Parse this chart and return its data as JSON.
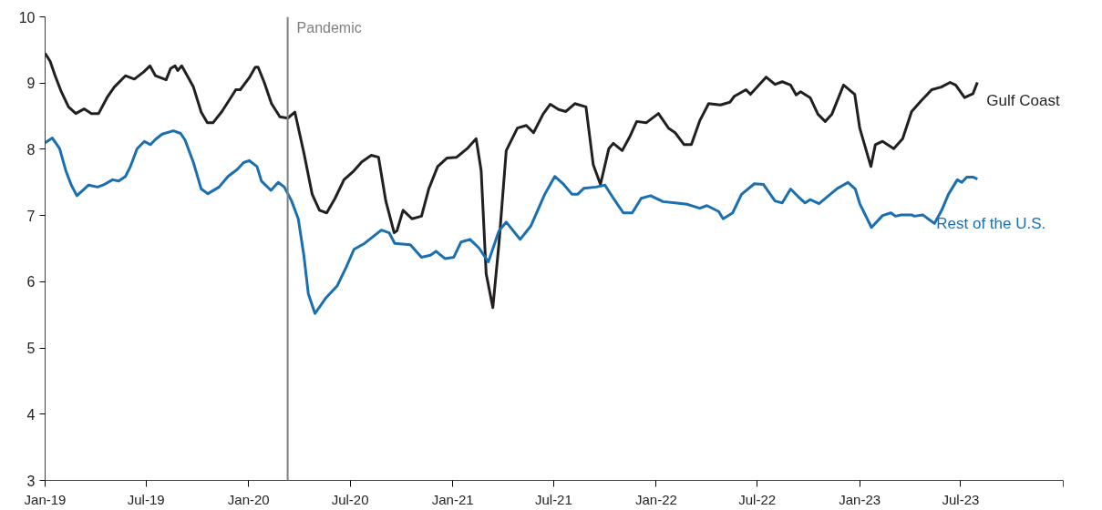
{
  "chart_data": {
    "type": "line",
    "xlim": [
      "2019-01-01",
      "2024-01-01"
    ],
    "ylim": [
      3,
      10
    ],
    "yticks": [
      3,
      4,
      5,
      6,
      7,
      8,
      9,
      10
    ],
    "xticks": [
      {
        "value": "2019-01-01",
        "label": "Jan-19"
      },
      {
        "value": "2019-07-01",
        "label": "Jul-19"
      },
      {
        "value": "2020-01-01",
        "label": "Jan-20"
      },
      {
        "value": "2020-07-01",
        "label": "Jul-20"
      },
      {
        "value": "2021-01-01",
        "label": "Jan-21"
      },
      {
        "value": "2021-07-01",
        "label": "Jul-21"
      },
      {
        "value": "2022-01-01",
        "label": "Jan-22"
      },
      {
        "value": "2022-07-01",
        "label": "Jul-22"
      },
      {
        "value": "2023-01-01",
        "label": "Jan-23"
      },
      {
        "value": "2023-07-01",
        "label": "Jul-23"
      },
      {
        "value": "2024-01-01",
        "label": null
      }
    ],
    "grid": false,
    "legend": false,
    "marker": "none",
    "line_style": "solid",
    "ref_lines": [
      {
        "axis": "x",
        "value": "2020-03-11",
        "label": "Pandemic",
        "color": "#808080"
      }
    ],
    "series": [
      {
        "name": "Gulf Coast",
        "color": "#231f20",
        "x": [
          "2019-01-01",
          "2019-01-10",
          "2019-01-19",
          "2019-01-30",
          "2019-02-12",
          "2019-02-25",
          "2019-03-12",
          "2019-03-25",
          "2019-04-07",
          "2019-04-22",
          "2019-05-05",
          "2019-05-25",
          "2019-06-10",
          "2019-06-27",
          "2019-07-08",
          "2019-07-18",
          "2019-08-06",
          "2019-08-14",
          "2019-08-22",
          "2019-08-27",
          "2019-09-03",
          "2019-09-13",
          "2019-09-24",
          "2019-10-08",
          "2019-10-19",
          "2019-10-29",
          "2019-11-14",
          "2019-11-30",
          "2019-12-09",
          "2019-12-17",
          "2020-01-02",
          "2020-01-13",
          "2020-01-18",
          "2020-01-29",
          "2020-02-11",
          "2020-02-26",
          "2020-03-11",
          "2020-03-24",
          "2020-04-09",
          "2020-04-24",
          "2020-05-07",
          "2020-05-20",
          "2020-06-04",
          "2020-06-20",
          "2020-07-06",
          "2020-07-22",
          "2020-08-08",
          "2020-08-21",
          "2020-09-03",
          "2020-09-18",
          "2020-09-23",
          "2020-10-04",
          "2020-10-20",
          "2020-11-06",
          "2020-11-19",
          "2020-12-05",
          "2020-12-22",
          "2021-01-08",
          "2021-01-27",
          "2021-02-12",
          "2021-02-21",
          "2021-03-02",
          "2021-03-14",
          "2021-03-25",
          "2021-04-07",
          "2021-04-27",
          "2021-05-13",
          "2021-05-26",
          "2021-06-12",
          "2021-06-25",
          "2021-07-10",
          "2021-07-23",
          "2021-08-08",
          "2021-08-28",
          "2021-09-10",
          "2021-09-23",
          "2021-10-08",
          "2021-10-16",
          "2021-11-01",
          "2021-11-14",
          "2021-11-27",
          "2021-12-14",
          "2022-01-05",
          "2022-01-23",
          "2022-02-04",
          "2022-02-20",
          "2022-03-05",
          "2022-03-20",
          "2022-04-05",
          "2022-04-26",
          "2022-05-13",
          "2022-05-21",
          "2022-06-11",
          "2022-06-19",
          "2022-07-01",
          "2022-07-17",
          "2022-08-02",
          "2022-08-15",
          "2022-08-30",
          "2022-09-09",
          "2022-09-17",
          "2022-10-04",
          "2022-10-18",
          "2022-10-31",
          "2022-11-12",
          "2022-12-03",
          "2022-12-23",
          "2023-01-01",
          "2023-01-21",
          "2023-01-29",
          "2023-02-11",
          "2023-03-03",
          "2023-03-19",
          "2023-04-04",
          "2023-04-21",
          "2023-05-10",
          "2023-05-27",
          "2023-06-12",
          "2023-06-22",
          "2023-07-08",
          "2023-07-23",
          "2023-07-31"
        ],
        "values": [
          9.45,
          9.33,
          9.11,
          8.87,
          8.64,
          8.54,
          8.61,
          8.54,
          8.54,
          8.78,
          8.94,
          9.11,
          9.06,
          9.17,
          9.26,
          9.11,
          9.05,
          9.22,
          9.26,
          9.19,
          9.26,
          9.11,
          8.94,
          8.56,
          8.4,
          8.4,
          8.57,
          8.78,
          8.9,
          8.9,
          9.08,
          9.24,
          9.24,
          9.01,
          8.69,
          8.49,
          8.47,
          8.56,
          7.95,
          7.32,
          7.08,
          7.04,
          7.26,
          7.54,
          7.66,
          7.81,
          7.91,
          7.88,
          7.22,
          6.74,
          6.77,
          7.08,
          6.95,
          6.99,
          7.4,
          7.74,
          7.87,
          7.88,
          8.01,
          8.16,
          7.68,
          6.12,
          5.61,
          6.58,
          7.98,
          8.32,
          8.36,
          8.25,
          8.53,
          8.68,
          8.6,
          8.57,
          8.69,
          8.64,
          7.77,
          7.47,
          8.01,
          8.09,
          7.98,
          8.18,
          8.42,
          8.4,
          8.54,
          8.32,
          8.25,
          8.07,
          8.07,
          8.43,
          8.69,
          8.67,
          8.71,
          8.8,
          8.9,
          8.83,
          8.94,
          9.09,
          8.98,
          9.02,
          8.97,
          8.82,
          8.87,
          8.78,
          8.53,
          8.42,
          8.53,
          8.97,
          8.83,
          8.32,
          7.74,
          8.07,
          8.12,
          8.01,
          8.16,
          8.57,
          8.73,
          8.9,
          8.94,
          9.01,
          8.97,
          8.78,
          8.84,
          9.01
        ]
      },
      {
        "name": "Rest of the U.S.",
        "color": "#1a6fb0",
        "x": [
          "2019-01-01",
          "2019-01-14",
          "2019-01-27",
          "2019-02-07",
          "2019-02-17",
          "2019-02-27",
          "2019-03-12",
          "2019-03-20",
          "2019-04-05",
          "2019-04-15",
          "2019-05-02",
          "2019-05-13",
          "2019-05-25",
          "2019-06-03",
          "2019-06-15",
          "2019-06-28",
          "2019-07-09",
          "2019-07-18",
          "2019-07-30",
          "2019-08-19",
          "2019-09-01",
          "2019-09-09",
          "2019-09-24",
          "2019-10-08",
          "2019-10-20",
          "2019-11-09",
          "2019-11-25",
          "2019-12-12",
          "2019-12-23",
          "2020-01-02",
          "2020-01-16",
          "2020-01-24",
          "2020-02-10",
          "2020-02-23",
          "2020-03-05",
          "2020-03-18",
          "2020-03-30",
          "2020-04-09",
          "2020-04-17",
          "2020-04-29",
          "2020-05-18",
          "2020-06-08",
          "2020-06-24",
          "2020-07-08",
          "2020-07-27",
          "2020-08-26",
          "2020-09-09",
          "2020-09-19",
          "2020-10-17",
          "2020-11-06",
          "2020-11-22",
          "2020-12-02",
          "2020-12-18",
          "2021-01-03",
          "2021-01-16",
          "2021-02-01",
          "2021-02-17",
          "2021-03-06",
          "2021-03-25",
          "2021-04-07",
          "2021-05-02",
          "2021-05-21",
          "2021-06-15",
          "2021-07-03",
          "2021-07-19",
          "2021-08-03",
          "2021-08-13",
          "2021-08-24",
          "2021-09-15",
          "2021-10-01",
          "2021-10-17",
          "2021-11-03",
          "2021-11-19",
          "2021-12-05",
          "2021-12-22",
          "2022-01-13",
          "2022-02-04",
          "2022-02-25",
          "2022-03-20",
          "2022-04-02",
          "2022-04-23",
          "2022-05-01",
          "2022-05-18",
          "2022-06-03",
          "2022-06-26",
          "2022-07-12",
          "2022-08-02",
          "2022-08-15",
          "2022-08-30",
          "2022-09-12",
          "2022-09-25",
          "2022-10-04",
          "2022-10-20",
          "2022-11-09",
          "2022-11-22",
          "2022-12-11",
          "2022-12-24",
          "2023-01-01",
          "2023-01-22",
          "2023-02-11",
          "2023-02-26",
          "2023-03-06",
          "2023-03-16",
          "2023-04-04",
          "2023-04-09",
          "2023-04-24",
          "2023-05-15",
          "2023-05-28",
          "2023-06-09",
          "2023-06-25",
          "2023-07-03",
          "2023-07-12",
          "2023-07-23",
          "2023-07-31"
        ],
        "values": [
          8.1,
          8.17,
          8.01,
          7.68,
          7.46,
          7.3,
          7.4,
          7.46,
          7.43,
          7.46,
          7.54,
          7.52,
          7.59,
          7.74,
          8.01,
          8.12,
          8.07,
          8.15,
          8.23,
          8.28,
          8.24,
          8.14,
          7.8,
          7.4,
          7.33,
          7.43,
          7.59,
          7.7,
          7.8,
          7.83,
          7.74,
          7.52,
          7.38,
          7.5,
          7.43,
          7.22,
          6.95,
          6.4,
          5.82,
          5.52,
          5.75,
          5.94,
          6.22,
          6.49,
          6.58,
          6.78,
          6.74,
          6.58,
          6.56,
          6.37,
          6.4,
          6.46,
          6.35,
          6.37,
          6.6,
          6.64,
          6.51,
          6.3,
          6.77,
          6.9,
          6.64,
          6.84,
          7.32,
          7.59,
          7.47,
          7.32,
          7.32,
          7.41,
          7.43,
          7.46,
          7.25,
          7.04,
          7.04,
          7.26,
          7.3,
          7.21,
          7.19,
          7.17,
          7.11,
          7.15,
          7.06,
          6.95,
          7.04,
          7.32,
          7.48,
          7.47,
          7.22,
          7.19,
          7.4,
          7.29,
          7.19,
          7.24,
          7.18,
          7.32,
          7.41,
          7.5,
          7.4,
          7.18,
          6.82,
          7.0,
          7.04,
          6.99,
          7.01,
          7.01,
          6.99,
          7.01,
          6.88,
          7.08,
          7.32,
          7.54,
          7.5,
          7.58,
          7.58,
          7.55
        ]
      }
    ]
  }
}
